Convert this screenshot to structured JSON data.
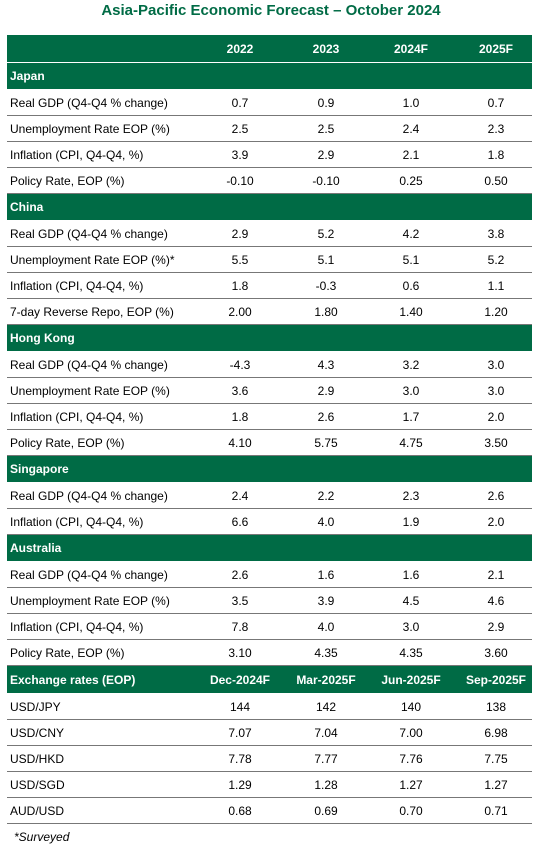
{
  "title": "Asia-Pacific Economic Forecast – October 2024",
  "header": {
    "columns": [
      "2022",
      "2023",
      "2024F",
      "2025F"
    ]
  },
  "sections": [
    {
      "name": "Japan",
      "rows": [
        {
          "label": "Real GDP (Q4-Q4 % change)",
          "values": [
            "0.7",
            "0.9",
            "1.0",
            "0.7"
          ]
        },
        {
          "label": "Unemployment Rate EOP (%)",
          "values": [
            "2.5",
            "2.5",
            "2.4",
            "2.3"
          ]
        },
        {
          "label": "Inflation (CPI, Q4-Q4, %)",
          "values": [
            "3.9",
            "2.9",
            "2.1",
            "1.8"
          ]
        },
        {
          "label": "Policy Rate, EOP (%)",
          "values": [
            "-0.10",
            "-0.10",
            "0.25",
            "0.50"
          ]
        }
      ]
    },
    {
      "name": "China",
      "rows": [
        {
          "label": "Real GDP (Q4-Q4 % change)",
          "values": [
            "2.9",
            "5.2",
            "4.2",
            "3.8"
          ]
        },
        {
          "label": "Unemployment Rate EOP (%)*",
          "values": [
            "5.5",
            "5.1",
            "5.1",
            "5.2"
          ]
        },
        {
          "label": "Inflation (CPI, Q4-Q4, %)",
          "values": [
            "1.8",
            "-0.3",
            "0.6",
            "1.1"
          ]
        },
        {
          "label": "7-day Reverse Repo, EOP (%)",
          "values": [
            "2.00",
            "1.80",
            "1.40",
            "1.20"
          ]
        }
      ]
    },
    {
      "name": "Hong Kong",
      "rows": [
        {
          "label": "Real GDP (Q4-Q4 % change)",
          "values": [
            "-4.3",
            "4.3",
            "3.2",
            "3.0"
          ]
        },
        {
          "label": "Unemployment Rate EOP (%)",
          "values": [
            "3.6",
            "2.9",
            "3.0",
            "3.0"
          ]
        },
        {
          "label": "Inflation (CPI, Q4-Q4, %)",
          "values": [
            "1.8",
            "2.6",
            "1.7",
            "2.0"
          ]
        },
        {
          "label": "Policy Rate, EOP (%)",
          "values": [
            "4.10",
            "5.75",
            "4.75",
            "3.50"
          ]
        }
      ]
    },
    {
      "name": "Singapore",
      "rows": [
        {
          "label": "Real GDP (Q4-Q4 % change)",
          "values": [
            "2.4",
            "2.2",
            "2.3",
            "2.6"
          ]
        },
        {
          "label": "Inflation (CPI, Q4-Q4, %)",
          "values": [
            "6.6",
            "4.0",
            "1.9",
            "2.0"
          ]
        }
      ]
    },
    {
      "name": "Australia",
      "rows": [
        {
          "label": "Real GDP (Q4-Q4 % change)",
          "values": [
            "2.6",
            "1.6",
            "1.6",
            "2.1"
          ]
        },
        {
          "label": "Unemployment Rate EOP (%)",
          "values": [
            "3.5",
            "3.9",
            "4.5",
            "4.6"
          ]
        },
        {
          "label": "Inflation (CPI, Q4-Q4, %)",
          "values": [
            "7.8",
            "4.0",
            "3.0",
            "2.9"
          ]
        },
        {
          "label": "Policy Rate, EOP (%)",
          "values": [
            "3.10",
            "4.35",
            "4.35",
            "3.60"
          ]
        }
      ]
    }
  ],
  "fx": {
    "title": "Exchange rates (EOP)",
    "columns": [
      "Dec-2024F",
      "Mar-2025F",
      "Jun-2025F",
      "Sep-2025F"
    ],
    "rows": [
      {
        "label": "USD/JPY",
        "values": [
          "144",
          "142",
          "140",
          "138"
        ]
      },
      {
        "label": "USD/CNY",
        "values": [
          "7.07",
          "7.04",
          "7.00",
          "6.98"
        ]
      },
      {
        "label": "USD/HKD",
        "values": [
          "7.78",
          "7.77",
          "7.76",
          "7.75"
        ]
      },
      {
        "label": "USD/SGD",
        "values": [
          "1.29",
          "1.28",
          "1.27",
          "1.27"
        ]
      },
      {
        "label": "AUD/USD",
        "values": [
          "0.68",
          "0.69",
          "0.70",
          "0.71"
        ]
      }
    ]
  },
  "footnote": "*Surveyed"
}
